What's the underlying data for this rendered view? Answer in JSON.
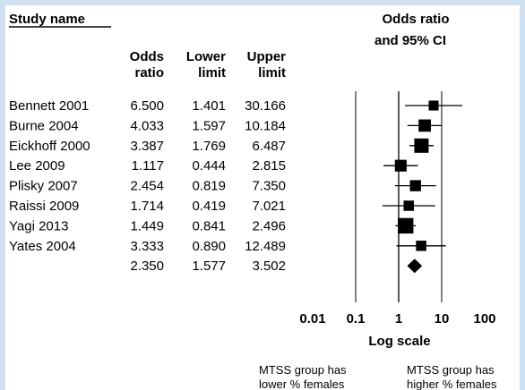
{
  "chart_data": {
    "type": "forest",
    "header": {
      "study_name": "Study name",
      "odds_ratio_top": "Odds",
      "odds_ratio_bottom": "ratio",
      "lower_top": "Lower",
      "lower_bottom": "limit",
      "upper_top": "Upper",
      "upper_bottom": "limit",
      "plot_title_line1": "Odds ratio",
      "plot_title_line2": "and 95% CI"
    },
    "rows": [
      {
        "study": "Bennett 2001",
        "or": "6.500",
        "lower": "1.401",
        "upper": "30.166",
        "or_val": 6.5,
        "lower_val": 1.401,
        "upper_val": 30.166,
        "weight": 0.45
      },
      {
        "study": "Burne 2004",
        "or": "4.033",
        "lower": "1.597",
        "upper": "10.184",
        "or_val": 4.033,
        "lower_val": 1.597,
        "upper_val": 10.184,
        "weight": 0.75
      },
      {
        "study": "Eickhoff 2000",
        "or": "3.387",
        "lower": "1.769",
        "upper": "6.487",
        "or_val": 3.387,
        "lower_val": 1.769,
        "upper_val": 6.487,
        "weight": 1.0
      },
      {
        "study": "Lee 2009",
        "or": "1.117",
        "lower": "0.444",
        "upper": "2.815",
        "or_val": 1.117,
        "lower_val": 0.444,
        "upper_val": 2.815,
        "weight": 0.68
      },
      {
        "study": "Plisky 2007",
        "or": "2.454",
        "lower": "0.819",
        "upper": "7.350",
        "or_val": 2.454,
        "lower_val": 0.819,
        "upper_val": 7.35,
        "weight": 0.6
      },
      {
        "study": "Raissi 2009",
        "or": "1.714",
        "lower": "0.419",
        "upper": "7.021",
        "or_val": 1.714,
        "lower_val": 0.419,
        "upper_val": 7.021,
        "weight": 0.5
      },
      {
        "study": "Yagi 2013",
        "or": "1.449",
        "lower": "0.841",
        "upper": "2.496",
        "or_val": 1.449,
        "lower_val": 0.841,
        "upper_val": 2.496,
        "weight": 1.15
      },
      {
        "study": "Yates 2004",
        "or": "3.333",
        "lower": "0.890",
        "upper": "12.489",
        "or_val": 3.333,
        "lower_val": 0.89,
        "upper_val": 12.489,
        "weight": 0.5
      }
    ],
    "summary": {
      "or": "2.350",
      "lower": "1.577",
      "upper": "3.502",
      "or_val": 2.35,
      "lower_val": 1.577,
      "upper_val": 3.502
    },
    "x_axis": {
      "scale": "log",
      "ticks": [
        {
          "value": 0.01,
          "label": "0.01"
        },
        {
          "value": 0.1,
          "label": "0.1"
        },
        {
          "value": 1,
          "label": "1"
        },
        {
          "value": 10,
          "label": "10"
        },
        {
          "value": 100,
          "label": "100"
        }
      ],
      "xlabel": "Log scale",
      "reference_line": 1
    },
    "footnotes": {
      "left_line1": "MTSS group has",
      "left_line2": "lower % females",
      "right_line1": "MTSS group has",
      "right_line2": "higher % females"
    }
  }
}
